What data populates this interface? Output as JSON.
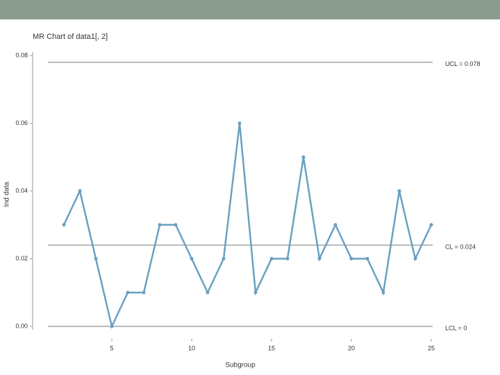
{
  "chart_data": {
    "type": "line",
    "title": "MR Chart of data1[, 2]",
    "x_label": "Subgroup",
    "y_label": "Ind data",
    "x": [
      2,
      3,
      4,
      5,
      6,
      7,
      8,
      9,
      10,
      11,
      12,
      13,
      14,
      15,
      16,
      17,
      18,
      19,
      20,
      21,
      22,
      23,
      24,
      25
    ],
    "series": [
      {
        "color": "#6a9fc0",
        "values": [
          0.03,
          0.04,
          0.02,
          0.0,
          0.01,
          0.01,
          0.03,
          0.03,
          0.02,
          0.01,
          0.02,
          0.06,
          0.01,
          0.02,
          0.02,
          0.05,
          0.02,
          0.03,
          0.02,
          0.02,
          0.01,
          0.04,
          0.02,
          0.03
        ]
      }
    ],
    "xlim": [
      0,
      26
    ],
    "xticks": [
      5,
      10,
      15,
      20,
      25
    ],
    "ylim": [
      0,
      0.08
    ],
    "yticks": [
      {
        "value": 0,
        "label": "0.00"
      },
      {
        "value": 0.02,
        "label": "0.02"
      },
      {
        "value": 0.04,
        "label": "0.04"
      },
      {
        "value": 0.06,
        "label": "0.06"
      },
      {
        "value": 0.08,
        "label": "0.08"
      }
    ],
    "control_lines": [
      {
        "value": 0.078,
        "label": "UCL = 0.078"
      },
      {
        "value": 0.024,
        "label": "CL = 0.024"
      },
      {
        "value": 0,
        "label": "LCL = 0"
      }
    ]
  }
}
